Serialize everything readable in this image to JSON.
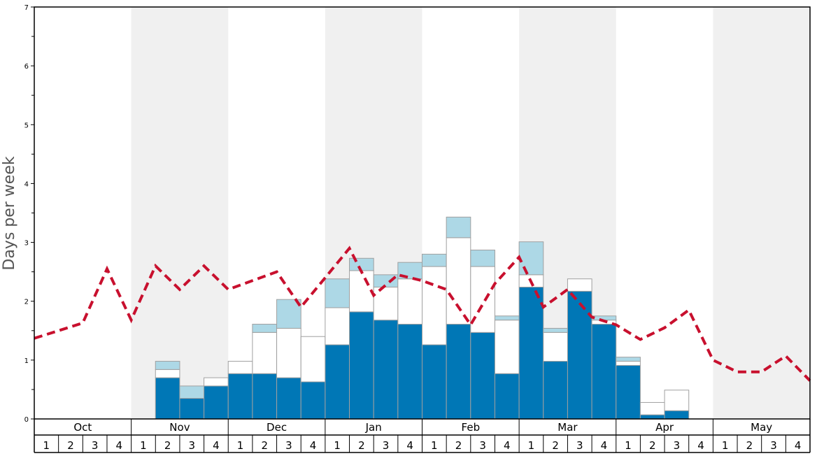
{
  "chart_data": {
    "type": "bar",
    "ylabel": "Days per week",
    "ylim": [
      0,
      7
    ],
    "yticks": [
      "0",
      "1",
      "2",
      "3",
      "4",
      "5",
      "6",
      "7"
    ],
    "months": [
      "Oct",
      "Nov",
      "Dec",
      "Jan",
      "Feb",
      "Mar",
      "Apr",
      "May"
    ],
    "weeks": [
      "1",
      "2",
      "3",
      "4"
    ],
    "shaded_months": [
      "Nov",
      "Jan",
      "Mar",
      "May"
    ],
    "colors": {
      "dark": "#0077b6",
      "light": "#add8e6",
      "mid": "#ffffff",
      "line": "#c8102e",
      "shade": "#f0f0f0"
    },
    "series": [
      {
        "name": "dark-blue",
        "values": [
          0,
          0,
          0,
          0,
          0,
          0.7,
          0.35,
          0.56,
          0.77,
          0.77,
          0.7,
          0.63,
          1.26,
          1.82,
          1.68,
          1.61,
          1.26,
          1.61,
          1.47,
          0.77,
          2.24,
          0.98,
          2.17,
          1.61,
          0.91,
          0.07,
          0.14,
          0,
          0,
          0,
          0,
          0
        ]
      },
      {
        "name": "white",
        "values": [
          0,
          0,
          0,
          0,
          0,
          0.14,
          0,
          0.14,
          0.21,
          0.7,
          0.84,
          0.77,
          0.63,
          0.7,
          0.56,
          0.77,
          1.33,
          1.47,
          1.12,
          0.91,
          0.21,
          0.49,
          0.21,
          0.07,
          0.07,
          0.21,
          0.35,
          0,
          0,
          0,
          0,
          0
        ]
      },
      {
        "name": "light-blue",
        "values": [
          0,
          0,
          0,
          0,
          0,
          0.14,
          0.21,
          0,
          0,
          0.14,
          0.49,
          0,
          0.49,
          0.21,
          0.21,
          0.28,
          0.21,
          0.35,
          0.28,
          0.07,
          0.56,
          0.07,
          0,
          0.07,
          0.07,
          0,
          0,
          0,
          0,
          0,
          0,
          0
        ]
      },
      {
        "name": "average-line",
        "values": [
          1.37,
          1.5,
          1.63,
          2.55,
          1.68,
          2.6,
          2.2,
          2.6,
          2.2,
          2.35,
          2.5,
          1.9,
          2.4,
          2.9,
          2.1,
          2.45,
          2.35,
          2.2,
          1.6,
          2.3,
          2.75,
          1.9,
          2.2,
          1.73,
          1.6,
          1.35,
          1.55,
          1.85,
          1.0,
          0.8,
          0.8,
          1.07
        ]
      }
    ],
    "line_end_value": 0.65
  }
}
